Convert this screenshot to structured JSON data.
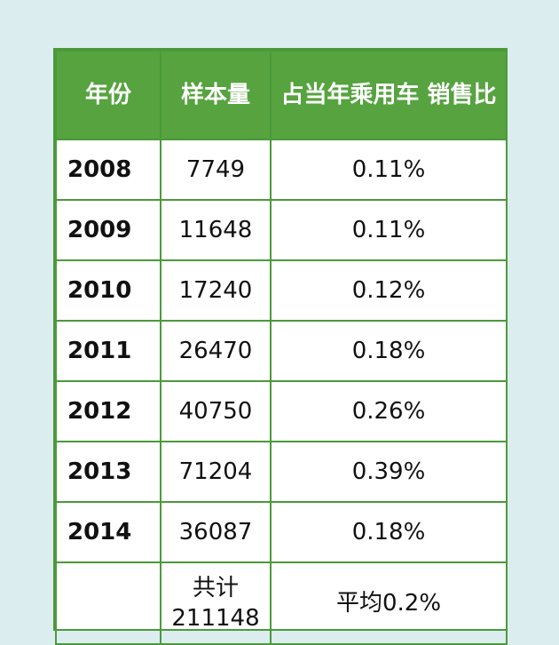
{
  "table": {
    "headers": [
      "年份",
      "样本量",
      "占当年乘用车 销售比"
    ],
    "rows": [
      {
        "year": "2008",
        "sample": "7749",
        "ratio": "0.11%"
      },
      {
        "year": "2009",
        "sample": "11648",
        "ratio": "0.11%"
      },
      {
        "year": "2010",
        "sample": "17240",
        "ratio": "0.12%"
      },
      {
        "year": "2011",
        "sample": "26470",
        "ratio": "0.18%"
      },
      {
        "year": "2012",
        "sample": "40750",
        "ratio": "0.26%"
      },
      {
        "year": "2013",
        "sample": "71204",
        "ratio": "0.39%"
      },
      {
        "year": "2014",
        "sample": "36087",
        "ratio": "0.18%"
      }
    ],
    "total": {
      "label": "共计",
      "value": "211148",
      "average": "平均0.2%"
    }
  },
  "colors": {
    "header_bg": "#56a33f",
    "border": "#4b9a3a",
    "page_bg": "#dcedf0"
  }
}
